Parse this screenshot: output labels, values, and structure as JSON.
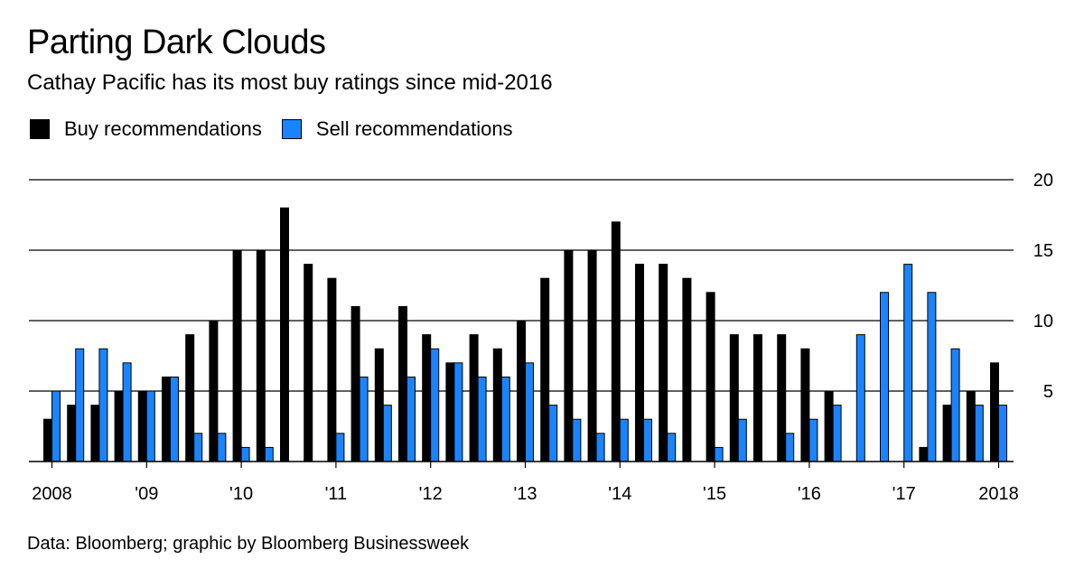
{
  "header": {
    "title": "Parting Dark Clouds",
    "subtitle": "Cathay Pacific has its most buy ratings since mid-2016"
  },
  "footer": {
    "source": "Data: Bloomberg; graphic by Bloomberg Businessweek"
  },
  "colors": {
    "buy": "#000000",
    "sell": "#1a84ff",
    "bar_stroke": "#000000",
    "grid": "#000000"
  },
  "chart_data": {
    "type": "bar",
    "title": "Parting Dark Clouds",
    "subtitle": "Cathay Pacific has its most buy ratings since mid-2016",
    "xlabel": "",
    "ylabel": "",
    "ylim": [
      0,
      20
    ],
    "yticks": [
      5,
      10,
      15,
      20
    ],
    "y_axis_position": "right",
    "grid": true,
    "legend_position": "top-left",
    "x_tick_labels": [
      {
        "label": "2008",
        "index": 0
      },
      {
        "label": "'09",
        "index": 4
      },
      {
        "label": "'10",
        "index": 8
      },
      {
        "label": "'11",
        "index": 12
      },
      {
        "label": "'12",
        "index": 16
      },
      {
        "label": "'13",
        "index": 20
      },
      {
        "label": "'14",
        "index": 24
      },
      {
        "label": "'15",
        "index": 28
      },
      {
        "label": "'16",
        "index": 32
      },
      {
        "label": "'17",
        "index": 36
      },
      {
        "label": "2018",
        "index": 40
      }
    ],
    "series": [
      {
        "name": "Buy recommendations",
        "color": "#000000",
        "values": [
          3,
          4,
          4,
          5,
          5,
          6,
          9,
          10,
          15,
          15,
          18,
          14,
          13,
          11,
          8,
          11,
          9,
          7,
          9,
          8,
          10,
          13,
          15,
          15,
          17,
          14,
          14,
          13,
          12,
          9,
          9,
          9,
          8,
          5,
          0,
          0,
          0,
          1,
          4,
          5,
          7
        ]
      },
      {
        "name": "Sell recommendations",
        "color": "#1a84ff",
        "values": [
          5,
          8,
          8,
          7,
          5,
          6,
          2,
          2,
          1,
          1,
          0,
          0,
          2,
          6,
          4,
          6,
          8,
          7,
          6,
          6,
          7,
          4,
          3,
          2,
          3,
          3,
          2,
          0,
          1,
          3,
          0,
          2,
          3,
          4,
          9,
          12,
          14,
          12,
          8,
          4,
          4
        ]
      }
    ]
  }
}
